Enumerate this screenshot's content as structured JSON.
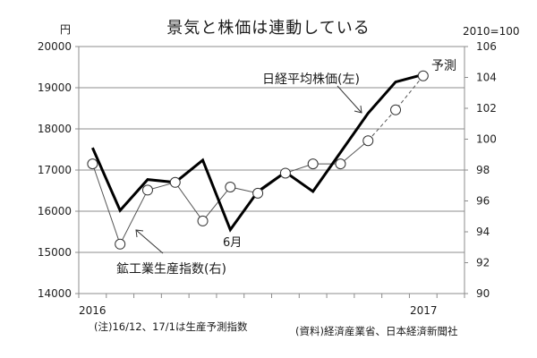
{
  "chart_data": {
    "type": "line",
    "title": "景気と株価は連動している",
    "left_axis": {
      "unit": "円",
      "ylim": [
        14000,
        20000
      ],
      "ticks": [
        14000,
        15000,
        16000,
        17000,
        18000,
        19000,
        20000
      ]
    },
    "right_axis": {
      "unit": "2010=100",
      "ylim": [
        90,
        106
      ],
      "ticks": [
        90,
        92,
        94,
        96,
        98,
        100,
        102,
        104,
        106
      ]
    },
    "categories": [
      "2016/1",
      "2016/2",
      "2016/3",
      "2016/4",
      "2016/5",
      "2016/6",
      "2016/7",
      "2016/8",
      "2016/9",
      "2016/10",
      "2016/11",
      "2016/12",
      "2017/1",
      ""
    ],
    "x_tick_labels": [
      {
        "index": 0,
        "label": "2016"
      },
      {
        "index": 12,
        "label": "2017"
      }
    ],
    "grid": true,
    "series": [
      {
        "name": "日経平均株価(左)",
        "axis": "left",
        "style": "thick-solid",
        "values": [
          17540,
          16020,
          16770,
          16700,
          17240,
          15550,
          16480,
          16950,
          16480,
          17430,
          18380,
          19140,
          19320
        ]
      },
      {
        "name": "鉱工業生産指数(右)",
        "axis": "right",
        "style": "thin-circle-markers",
        "forecast_from_index": 10,
        "values": [
          98.4,
          93.2,
          96.7,
          97.2,
          94.7,
          96.9,
          96.5,
          97.8,
          98.4,
          98.4,
          99.9,
          101.9,
          104.1
        ]
      }
    ]
  },
  "labels": {
    "title": "景気と株価は連動している",
    "unit_left": "円",
    "unit_right": "2010=100",
    "nikkei_label": "日経平均株価(左)",
    "forecast_label": "予測",
    "ip_label": "鉱工業生産指数(右)",
    "june_label": "6月",
    "x_2016": "2016",
    "x_2017": "2017",
    "note": "(注)16/12、17/1は生産予測指数",
    "source": "(資料)経済産業省、日本経済新聞社"
  }
}
